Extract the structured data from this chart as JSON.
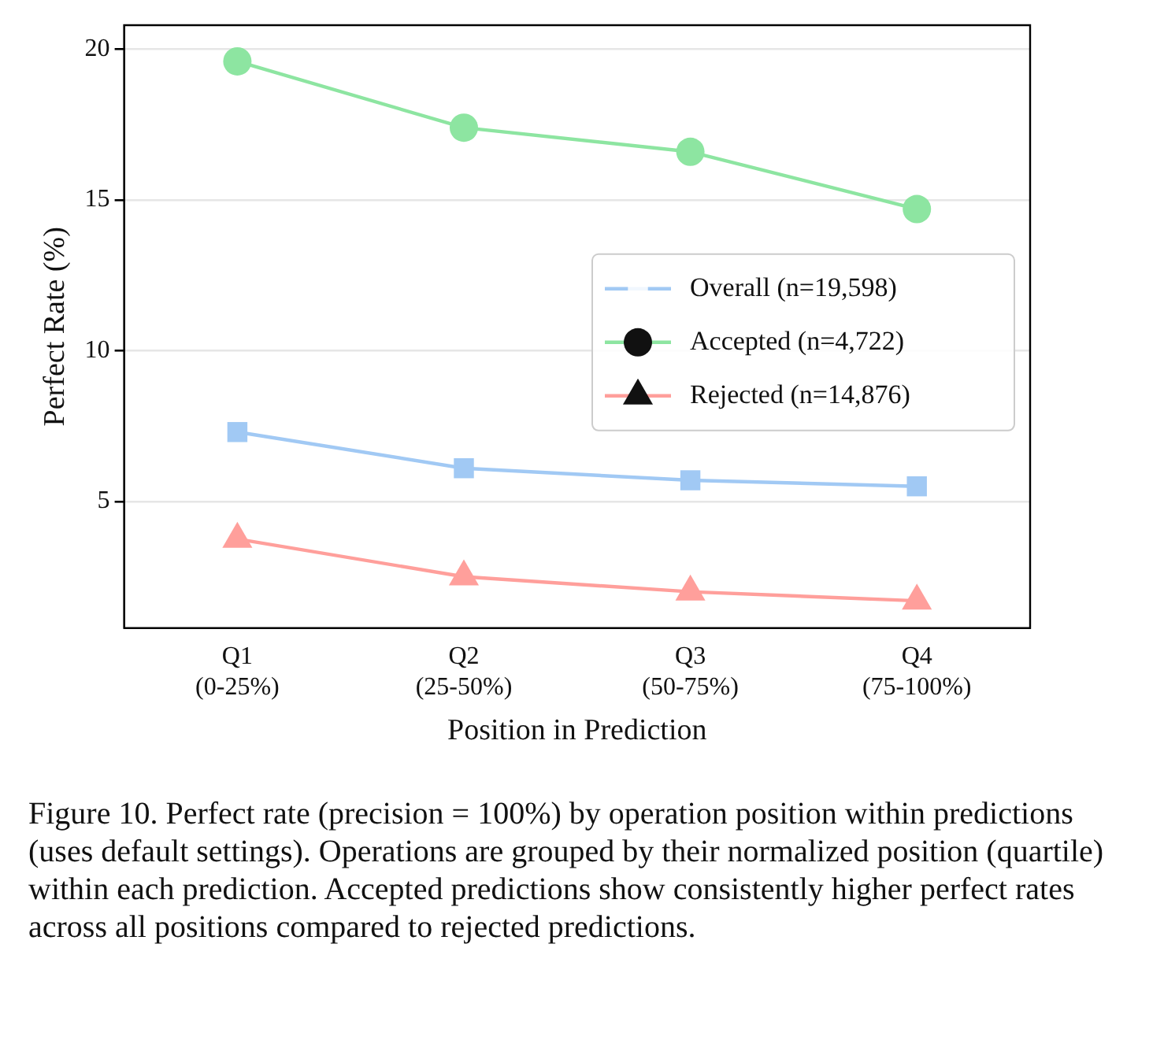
{
  "chart_data": {
    "type": "line",
    "xlabel": "Position in Prediction",
    "ylabel": "Perfect Rate (%)",
    "categories": [
      "Q1\n(0-25%)",
      "Q2\n(25-50%)",
      "Q3\n(50-75%)",
      "Q4\n(75-100%)"
    ],
    "series": [
      {
        "name": "Overall (n=19,598)",
        "color": "#a1c9f4",
        "marker": "square",
        "values": [
          7.3,
          6.1,
          5.7,
          5.5
        ]
      },
      {
        "name": "Accepted (n=4,722)",
        "color": "#8de5a1",
        "marker": "circle",
        "values": [
          19.6,
          17.4,
          16.6,
          14.7
        ]
      },
      {
        "name": "Rejected (n=14,876)",
        "color": "#ff9f9b",
        "marker": "triangle",
        "values": [
          3.75,
          2.5,
          2.0,
          1.7
        ]
      }
    ],
    "ylim": [
      0.8,
      20.8
    ],
    "yticks": [
      5,
      10,
      15,
      20
    ],
    "grid": "y",
    "legend": "right",
    "line_style": "solid",
    "annotations": [
      "Figure 10. Perfect rate (precision = 100%) by operation position within predictions (uses default settings). Operations are grouped by their normalized position (quartile) within each prediction. Accepted predictions show consistently higher perfect rates across all positions compared to rejected predictions."
    ]
  }
}
